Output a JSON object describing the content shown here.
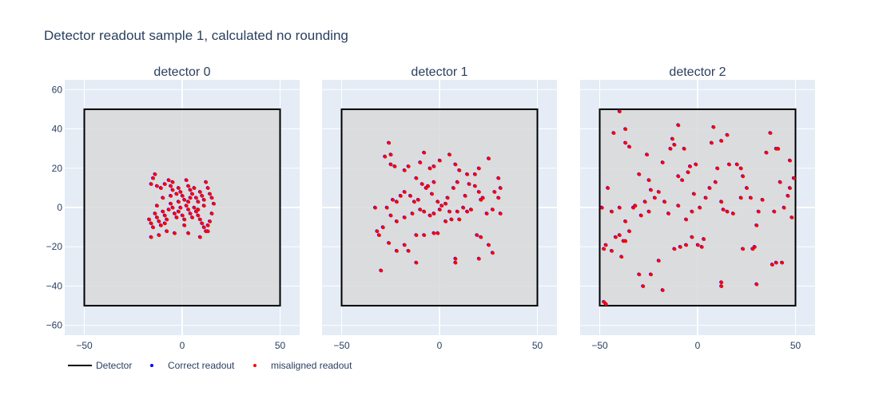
{
  "title": "Detector readout sample 1, calculated no rounding",
  "colors": {
    "plot_bg": "#e5ecf6",
    "grid": "#ffffff",
    "detector": "#000000",
    "detector_fill": "#d9d9d9",
    "correct": "#0000ff",
    "misaligned": "#ff0000"
  },
  "legend": {
    "detector": "Detector",
    "correct": "Correct readout",
    "misaligned": "misaligned readout"
  },
  "chart_data": [
    {
      "type": "scatter",
      "title": "detector 0",
      "xlim": [
        -60,
        60
      ],
      "ylim": [
        -65,
        65
      ],
      "xticks": [
        -50,
        0,
        50
      ],
      "yticks": [
        -60,
        -40,
        -20,
        0,
        20,
        40,
        60
      ],
      "detector_box": [
        -50,
        -50,
        50,
        50
      ],
      "points": [
        [
          -14,
          17
        ],
        [
          -15,
          15
        ],
        [
          -16,
          12
        ],
        [
          -13,
          11
        ],
        [
          -11,
          10
        ],
        [
          -9,
          12
        ],
        [
          -7,
          14
        ],
        [
          -6,
          11
        ],
        [
          -5,
          9
        ],
        [
          -3,
          7
        ],
        [
          -2,
          10
        ],
        [
          -1,
          8
        ],
        [
          0,
          6
        ],
        [
          1,
          4
        ],
        [
          2,
          14
        ],
        [
          3,
          11
        ],
        [
          4,
          9
        ],
        [
          5,
          7
        ],
        [
          6,
          10
        ],
        [
          7,
          5
        ],
        [
          8,
          3
        ],
        [
          9,
          8
        ],
        [
          10,
          6
        ],
        [
          11,
          4
        ],
        [
          12,
          13
        ],
        [
          13,
          10
        ],
        [
          14,
          7
        ],
        [
          15,
          5
        ],
        [
          16,
          2
        ],
        [
          -17,
          -6
        ],
        [
          -16,
          -8
        ],
        [
          -15,
          -10
        ],
        [
          -14,
          -3
        ],
        [
          -13,
          -5
        ],
        [
          -12,
          -7
        ],
        [
          -11,
          -9
        ],
        [
          -10,
          -2
        ],
        [
          -9,
          -4
        ],
        [
          -8,
          -6
        ],
        [
          -7,
          -1
        ],
        [
          -6,
          2
        ],
        [
          -5,
          0
        ],
        [
          -4,
          -3
        ],
        [
          -3,
          -5
        ],
        [
          -2,
          -2
        ],
        [
          -1,
          0
        ],
        [
          0,
          -4
        ],
        [
          1,
          -6
        ],
        [
          2,
          1
        ],
        [
          3,
          -1
        ],
        [
          4,
          -3
        ],
        [
          5,
          -5
        ],
        [
          6,
          0
        ],
        [
          7,
          -2
        ],
        [
          8,
          -4
        ],
        [
          9,
          -6
        ],
        [
          10,
          -8
        ],
        [
          11,
          -10
        ],
        [
          12,
          -12
        ],
        [
          13,
          -9
        ],
        [
          14,
          -7
        ],
        [
          15,
          -3
        ],
        [
          -16,
          -15
        ],
        [
          -12,
          -14
        ],
        [
          -8,
          -12
        ],
        [
          -4,
          -13
        ],
        [
          3,
          -13
        ],
        [
          9,
          -15
        ],
        [
          13,
          -12
        ],
        [
          -10,
          5
        ],
        [
          -6,
          6
        ],
        [
          -2,
          3
        ],
        [
          3,
          3
        ],
        [
          8,
          -1
        ],
        [
          11,
          1
        ],
        [
          -13,
          1
        ],
        [
          -9,
          -8
        ],
        [
          4,
          5
        ],
        [
          -5,
          13
        ],
        [
          1,
          -9
        ]
      ]
    },
    {
      "type": "scatter",
      "title": "detector 1",
      "xlim": [
        -60,
        60
      ],
      "ylim": [
        -65,
        65
      ],
      "xticks": [
        -50,
        0,
        50
      ],
      "yticks": [
        -60,
        -40,
        -20,
        0,
        20,
        40,
        60
      ],
      "detector_box": [
        -50,
        -50,
        50,
        50
      ],
      "points": [
        [
          -26,
          33
        ],
        [
          -28,
          26
        ],
        [
          -25,
          27
        ],
        [
          -25,
          22
        ],
        [
          -23,
          21
        ],
        [
          -18,
          19
        ],
        [
          -16,
          21
        ],
        [
          -12,
          15
        ],
        [
          -10,
          23
        ],
        [
          -8,
          28
        ],
        [
          -5,
          20
        ],
        [
          -3,
          21
        ],
        [
          0,
          24
        ],
        [
          5,
          27
        ],
        [
          8,
          22
        ],
        [
          10,
          19
        ],
        [
          14,
          17
        ],
        [
          18,
          17
        ],
        [
          20,
          20
        ],
        [
          25,
          25
        ],
        [
          30,
          15
        ],
        [
          31,
          10
        ],
        [
          28,
          8
        ],
        [
          30,
          5
        ],
        [
          31,
          -3
        ],
        [
          27,
          -1
        ],
        [
          22,
          5
        ],
        [
          20,
          8
        ],
        [
          18,
          11
        ],
        [
          15,
          12
        ],
        [
          13,
          6
        ],
        [
          9,
          13
        ],
        [
          7,
          10
        ],
        [
          4,
          5
        ],
        [
          1,
          1
        ],
        [
          -1,
          3
        ],
        [
          -4,
          7
        ],
        [
          -7,
          10
        ],
        [
          -9,
          12
        ],
        [
          -11,
          4
        ],
        [
          -13,
          3
        ],
        [
          -15,
          6
        ],
        [
          -18,
          8
        ],
        [
          -20,
          6
        ],
        [
          -22,
          3
        ],
        [
          -24,
          4
        ],
        [
          -27,
          0
        ],
        [
          -33,
          0
        ],
        [
          -32,
          -12
        ],
        [
          -31,
          -14
        ],
        [
          -29,
          -10
        ],
        [
          -25,
          -4
        ],
        [
          -22,
          -7
        ],
        [
          -18,
          -5
        ],
        [
          -14,
          -3
        ],
        [
          -10,
          -1
        ],
        [
          -8,
          -2
        ],
        [
          -5,
          -4
        ],
        [
          -3,
          -3
        ],
        [
          0,
          -1
        ],
        [
          3,
          2
        ],
        [
          5,
          -2
        ],
        [
          9,
          -2
        ],
        [
          12,
          0
        ],
        [
          14,
          -2
        ],
        [
          16,
          -1
        ],
        [
          21,
          4
        ],
        [
          24,
          -3
        ],
        [
          -12,
          -14
        ],
        [
          -8,
          -14
        ],
        [
          -3,
          -13
        ],
        [
          -1,
          -13
        ],
        [
          3,
          -7
        ],
        [
          6,
          -6
        ],
        [
          10,
          -6
        ],
        [
          19,
          -14
        ],
        [
          21,
          -15
        ],
        [
          25,
          -19
        ],
        [
          27,
          -23
        ],
        [
          -26,
          -18
        ],
        [
          -22,
          -22
        ],
        [
          -16,
          -22
        ],
        [
          -18,
          -19
        ],
        [
          -12,
          -28
        ],
        [
          -30,
          -32
        ],
        [
          8,
          -26
        ],
        [
          8,
          -28
        ],
        [
          20,
          -26
        ],
        [
          -3,
          13
        ],
        [
          -6,
          11
        ]
      ]
    },
    {
      "type": "scatter",
      "title": "detector 2",
      "xlim": [
        -60,
        60
      ],
      "ylim": [
        -65,
        65
      ],
      "xticks": [
        -50,
        0,
        50
      ],
      "yticks": [
        -60,
        -40,
        -20,
        0,
        20,
        40,
        60
      ],
      "detector_box": [
        -50,
        -50,
        50,
        50
      ],
      "points": [
        [
          -40,
          49
        ],
        [
          -37,
          40
        ],
        [
          -43,
          38
        ],
        [
          -37,
          33
        ],
        [
          -35,
          31
        ],
        [
          -13,
          35
        ],
        [
          -12,
          32
        ],
        [
          -10,
          42
        ],
        [
          -7,
          30
        ],
        [
          8,
          41
        ],
        [
          12,
          34
        ],
        [
          7,
          33
        ],
        [
          15,
          37
        ],
        [
          20,
          22
        ],
        [
          16,
          22
        ],
        [
          22,
          20
        ],
        [
          10,
          20
        ],
        [
          23,
          16
        ],
        [
          25,
          10
        ],
        [
          27,
          5
        ],
        [
          30,
          -9
        ],
        [
          29,
          -20
        ],
        [
          31,
          -2
        ],
        [
          35,
          28
        ],
        [
          37,
          38
        ],
        [
          40,
          30
        ],
        [
          42,
          13
        ],
        [
          43,
          -28
        ],
        [
          40,
          -28
        ],
        [
          46,
          6
        ],
        [
          48,
          -5
        ],
        [
          47,
          24
        ],
        [
          49,
          15
        ],
        [
          47,
          10
        ],
        [
          44,
          0
        ],
        [
          39,
          -2
        ],
        [
          33,
          4
        ],
        [
          23,
          -21
        ],
        [
          30,
          -39
        ],
        [
          15,
          -2
        ],
        [
          13,
          -1
        ],
        [
          12,
          3
        ],
        [
          18,
          -3
        ],
        [
          22,
          5
        ],
        [
          28,
          -21
        ],
        [
          9,
          13
        ],
        [
          4,
          5
        ],
        [
          1,
          0
        ],
        [
          -2,
          7
        ],
        [
          -3,
          -2
        ],
        [
          -5,
          18
        ],
        [
          -8,
          14
        ],
        [
          -10,
          16
        ],
        [
          -14,
          30
        ],
        [
          -18,
          23
        ],
        [
          -20,
          8
        ],
        [
          -22,
          5
        ],
        [
          -24,
          9
        ],
        [
          -25,
          14
        ],
        [
          -26,
          27
        ],
        [
          -30,
          17
        ],
        [
          -33,
          0
        ],
        [
          -37,
          -7
        ],
        [
          -40,
          0
        ],
        [
          -44,
          -2
        ],
        [
          -46,
          10
        ],
        [
          -47,
          -19
        ],
        [
          -48,
          -21
        ],
        [
          -49,
          0
        ],
        [
          -48,
          -48
        ],
        [
          -47,
          -49
        ],
        [
          -39,
          -25
        ],
        [
          -37,
          -17
        ],
        [
          -38,
          -17
        ],
        [
          -30,
          -34
        ],
        [
          -28,
          -40
        ],
        [
          -24,
          -34
        ],
        [
          -20,
          -27
        ],
        [
          -18,
          -42
        ],
        [
          -12,
          -21
        ],
        [
          -9,
          -20
        ],
        [
          -6,
          -19
        ],
        [
          0,
          -19
        ],
        [
          2,
          -20
        ],
        [
          12,
          -38
        ],
        [
          12,
          -40
        ],
        [
          3,
          -16
        ],
        [
          -3,
          -15
        ],
        [
          -6,
          -6
        ],
        [
          -10,
          1
        ],
        [
          -15,
          -3
        ],
        [
          -17,
          3
        ],
        [
          -25,
          -2
        ],
        [
          -27,
          3
        ],
        [
          -29,
          -4
        ],
        [
          -32,
          1
        ],
        [
          -35,
          -12
        ],
        [
          -40,
          -14
        ],
        [
          -42,
          -15
        ],
        [
          -44,
          -22
        ],
        [
          41,
          30
        ],
        [
          38,
          -29
        ],
        [
          6,
          10
        ],
        [
          -1,
          22
        ],
        [
          -4,
          21
        ]
      ]
    }
  ]
}
